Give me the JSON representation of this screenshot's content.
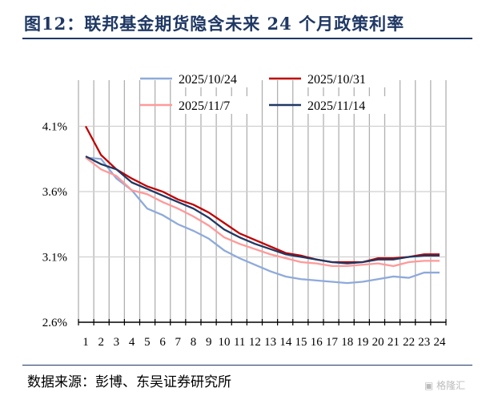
{
  "title": "图12：联邦基金期货隐含未来 24 个月政策利率",
  "source": "数据来源：彭博、东吴证券研究所",
  "watermark": "格隆汇",
  "chart_data": {
    "type": "line",
    "title": "",
    "xlabel": "",
    "ylabel": "",
    "x": [
      1,
      2,
      3,
      4,
      5,
      6,
      7,
      8,
      9,
      10,
      11,
      12,
      13,
      14,
      15,
      16,
      17,
      18,
      19,
      20,
      21,
      22,
      23,
      24
    ],
    "ylim": [
      2.6,
      4.3
    ],
    "yticks": [
      "2.6%",
      "3.1%",
      "3.6%",
      "4.1%"
    ],
    "ytick_values": [
      2.6,
      3.1,
      3.6,
      4.1
    ],
    "grid": "vertical and horizontal",
    "legend": "top",
    "series": [
      {
        "name": "2025/10/24",
        "color": "#8eaadb",
        "values": [
          3.86,
          3.85,
          3.7,
          3.61,
          3.47,
          3.42,
          3.35,
          3.3,
          3.24,
          3.15,
          3.09,
          3.04,
          2.99,
          2.95,
          2.93,
          2.92,
          2.91,
          2.9,
          2.91,
          2.93,
          2.95,
          2.94,
          2.98,
          2.98
        ]
      },
      {
        "name": "2025/10/31",
        "color": "#c00000",
        "values": [
          4.1,
          3.88,
          3.77,
          3.7,
          3.64,
          3.6,
          3.54,
          3.5,
          3.44,
          3.36,
          3.28,
          3.23,
          3.18,
          3.13,
          3.11,
          3.08,
          3.06,
          3.06,
          3.06,
          3.09,
          3.09,
          3.1,
          3.12,
          3.12
        ]
      },
      {
        "name": "2025/11/7",
        "color": "#ff9999",
        "values": [
          3.86,
          3.77,
          3.72,
          3.61,
          3.58,
          3.52,
          3.47,
          3.41,
          3.34,
          3.25,
          3.2,
          3.16,
          3.12,
          3.09,
          3.06,
          3.05,
          3.03,
          3.03,
          3.04,
          3.05,
          3.03,
          3.06,
          3.07,
          3.07
        ]
      },
      {
        "name": "2025/11/14",
        "color": "#203864",
        "values": [
          3.87,
          3.81,
          3.77,
          3.67,
          3.62,
          3.57,
          3.52,
          3.47,
          3.4,
          3.31,
          3.25,
          3.2,
          3.16,
          3.12,
          3.1,
          3.08,
          3.06,
          3.05,
          3.06,
          3.08,
          3.08,
          3.1,
          3.11,
          3.11
        ]
      }
    ]
  }
}
